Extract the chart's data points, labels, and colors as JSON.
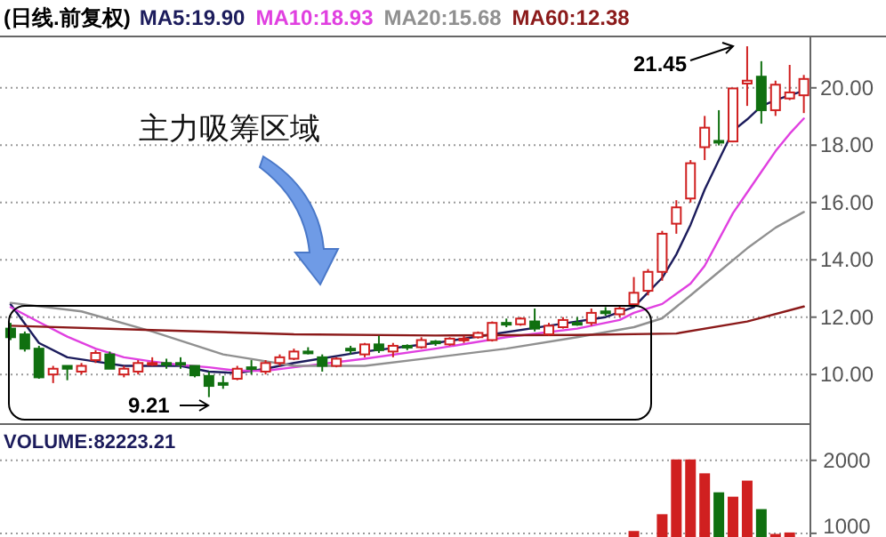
{
  "chart_data": [
    {
      "type": "candlestick",
      "title": "(日线.前复权)",
      "categories": [
        null,
        null,
        null,
        null,
        null,
        null,
        null,
        null,
        null,
        null,
        null,
        null,
        null,
        null,
        null,
        null,
        null,
        null,
        null,
        null,
        null,
        null,
        null,
        null,
        null,
        null,
        null,
        null,
        null,
        null,
        null,
        null,
        null,
        null,
        null,
        null,
        null,
        null,
        null,
        null,
        null,
        null,
        null,
        null,
        null,
        null,
        null,
        null,
        null,
        null,
        null,
        null,
        null,
        null,
        null,
        null,
        null
      ],
      "ohlc": [
        [
          11.6,
          11.8,
          11.2,
          11.3
        ],
        [
          11.4,
          11.5,
          10.8,
          10.9
        ],
        [
          10.9,
          11.0,
          9.85,
          9.9
        ],
        [
          10.0,
          10.3,
          9.7,
          10.2
        ],
        [
          10.3,
          10.3,
          9.8,
          10.2
        ],
        [
          10.1,
          10.4,
          10.0,
          10.3
        ],
        [
          10.5,
          10.85,
          10.4,
          10.75
        ],
        [
          10.7,
          10.8,
          10.2,
          10.2
        ],
        [
          10.0,
          10.3,
          9.9,
          10.2
        ],
        [
          10.1,
          10.5,
          10.0,
          10.4
        ],
        [
          10.35,
          10.6,
          10.3,
          10.4
        ],
        [
          10.4,
          10.55,
          10.2,
          10.35
        ],
        [
          10.4,
          10.6,
          10.2,
          10.35
        ],
        [
          10.3,
          10.3,
          9.9,
          9.97
        ],
        [
          9.95,
          10.1,
          9.21,
          9.6
        ],
        [
          9.7,
          9.95,
          9.5,
          9.68
        ],
        [
          9.85,
          10.3,
          9.8,
          10.2
        ],
        [
          10.25,
          10.5,
          10.0,
          10.2
        ],
        [
          10.1,
          10.5,
          10.0,
          10.4
        ],
        [
          10.4,
          10.7,
          10.3,
          10.6
        ],
        [
          10.55,
          10.9,
          10.5,
          10.8
        ],
        [
          10.8,
          10.95,
          10.7,
          10.75
        ],
        [
          10.6,
          10.7,
          10.1,
          10.3
        ],
        [
          10.3,
          10.6,
          10.25,
          10.55
        ],
        [
          10.9,
          11.0,
          10.7,
          10.85
        ],
        [
          10.7,
          11.1,
          10.6,
          11.05
        ],
        [
          11.05,
          11.35,
          10.75,
          10.85
        ],
        [
          10.8,
          11.1,
          10.6,
          11.0
        ],
        [
          11.0,
          11.05,
          10.85,
          10.95
        ],
        [
          10.95,
          11.3,
          10.9,
          11.2
        ],
        [
          11.15,
          11.2,
          11.0,
          11.1
        ],
        [
          11.05,
          11.3,
          11.0,
          11.25
        ],
        [
          11.2,
          11.35,
          11.1,
          11.25
        ],
        [
          11.3,
          11.5,
          11.25,
          11.45
        ],
        [
          11.2,
          11.85,
          11.15,
          11.8
        ],
        [
          11.8,
          11.95,
          11.65,
          11.75
        ],
        [
          11.75,
          12.0,
          11.7,
          11.95
        ],
        [
          11.85,
          12.3,
          11.5,
          11.6
        ],
        [
          11.4,
          11.8,
          11.35,
          11.7
        ],
        [
          11.65,
          12.0,
          11.6,
          11.9
        ],
        [
          11.8,
          12.0,
          11.7,
          11.75
        ],
        [
          11.8,
          12.3,
          11.7,
          12.15
        ],
        [
          12.2,
          12.35,
          12.05,
          12.15
        ],
        [
          12.1,
          12.4,
          12.0,
          12.3
        ],
        [
          12.45,
          13.4,
          12.4,
          12.85
        ],
        [
          12.92,
          13.68,
          12.76,
          13.58
        ],
        [
          13.58,
          15.01,
          13.27,
          14.91
        ],
        [
          15.26,
          16.08,
          14.91,
          15.83
        ],
        [
          16.14,
          17.48,
          16.0,
          17.37
        ],
        [
          17.93,
          19.02,
          17.48,
          18.61
        ],
        [
          18.15,
          19.22,
          17.99,
          18.1
        ],
        [
          18.13,
          19.98,
          18.1,
          19.98
        ],
        [
          20.15,
          21.45,
          19.37,
          20.25
        ],
        [
          20.39,
          20.93,
          18.75,
          19.22
        ],
        [
          19.22,
          20.25,
          19.02,
          20.11
        ],
        [
          19.63,
          20.8,
          19.57,
          19.84
        ],
        [
          19.74,
          20.45,
          19.12,
          20.31
        ]
      ],
      "series": [
        {
          "name": "MA5:19.90",
          "type": "line",
          "color": "#1c1c5c",
          "values": [
            12.45,
            null,
            11.1,
            null,
            10.6,
            null,
            10.45,
            null,
            10.3,
            null,
            null,
            null,
            10.3,
            null,
            10.1,
            null,
            10.05,
            null,
            10.2,
            null,
            10.4,
            null,
            null,
            null,
            null,
            10.8,
            null,
            null,
            null,
            null,
            11.1,
            null,
            null,
            null,
            11.4,
            null,
            null,
            null,
            11.7,
            null,
            null,
            null,
            12.0,
            null,
            12.35,
            null,
            13.37,
            14.19,
            15.22,
            16.45,
            17.48,
            18.5,
            18.9,
            19.36,
            19.57,
            19.74,
            19.9
          ]
        },
        {
          "name": "MA10:18.93",
          "type": "line",
          "color": "#e040e0",
          "values": [
            12.35,
            null,
            11.83,
            null,
            11.32,
            null,
            10.9,
            null,
            10.6,
            null,
            10.45,
            null,
            10.33,
            null,
            10.25,
            null,
            10.13,
            null,
            10.13,
            null,
            10.25,
            null,
            null,
            null,
            null,
            10.55,
            null,
            null,
            null,
            null,
            10.9,
            null,
            null,
            null,
            null,
            11.3,
            null,
            null,
            null,
            null,
            11.6,
            null,
            null,
            11.9,
            12.15,
            null,
            12.46,
            null,
            13.17,
            13.79,
            14.71,
            15.63,
            16.35,
            17.07,
            17.79,
            18.4,
            18.93
          ]
        },
        {
          "name": "MA20:15.68",
          "type": "line",
          "color": "#909090",
          "values": [
            12.5,
            null,
            null,
            null,
            null,
            12.2,
            null,
            null,
            null,
            null,
            11.5,
            null,
            null,
            null,
            null,
            10.7,
            null,
            null,
            null,
            null,
            10.3,
            null,
            null,
            null,
            null,
            10.3,
            null,
            null,
            null,
            null,
            10.6,
            null,
            null,
            null,
            null,
            10.9,
            null,
            null,
            null,
            null,
            11.3,
            null,
            null,
            null,
            11.65,
            null,
            11.96,
            null,
            12.76,
            null,
            13.58,
            null,
            14.4,
            null,
            15.12,
            null,
            15.67
          ]
        },
        {
          "name": "MA60:12.38",
          "type": "line",
          "color": "#8b1a1a",
          "values": [
            11.7,
            null,
            null,
            null,
            null,
            null,
            null,
            null,
            null,
            null,
            11.55,
            null,
            null,
            null,
            null,
            null,
            null,
            null,
            null,
            null,
            11.4,
            null,
            null,
            null,
            null,
            null,
            null,
            null,
            null,
            null,
            11.36,
            null,
            null,
            null,
            null,
            null,
            null,
            null,
            null,
            null,
            11.38,
            null,
            null,
            null,
            null,
            null,
            null,
            11.43,
            null,
            null,
            null,
            null,
            11.85,
            null,
            null,
            null,
            12.37
          ]
        }
      ],
      "ylim": [
        8.3,
        21.7
      ],
      "yticks": [
        {
          "value": 10,
          "label": "10.00"
        },
        {
          "value": 12,
          "label": "12.00"
        },
        {
          "value": 14,
          "label": "14.00"
        },
        {
          "value": 16,
          "label": "16.00"
        },
        {
          "value": 18,
          "label": "18.00"
        },
        {
          "value": 20,
          "label": "20.00"
        }
      ],
      "grid": "y",
      "legend": "top left",
      "annotations": [
        "主力吸筹区域",
        "9.21",
        "21.45"
      ]
    },
    {
      "type": "bar",
      "title": "VOLUME:82223.21",
      "categories": [
        null,
        null,
        null,
        null,
        null,
        null,
        null,
        null,
        null,
        null,
        null,
        null,
        null,
        null,
        null,
        null,
        null,
        null,
        null,
        null,
        null,
        null,
        null,
        null,
        null,
        null,
        null,
        null,
        null,
        null,
        null,
        null,
        null,
        null,
        null,
        null,
        null,
        null,
        null,
        null,
        null,
        null,
        null,
        null,
        null,
        null,
        null,
        null,
        null,
        null,
        null,
        null,
        null,
        null,
        null,
        null,
        null
      ],
      "values": [
        null,
        null,
        null,
        null,
        null,
        null,
        null,
        null,
        null,
        null,
        null,
        null,
        null,
        null,
        null,
        null,
        null,
        null,
        null,
        null,
        null,
        null,
        null,
        null,
        null,
        null,
        null,
        null,
        null,
        null,
        null,
        null,
        null,
        null,
        null,
        null,
        null,
        null,
        null,
        null,
        null,
        null,
        null,
        null,
        1020,
        null,
        1250,
        2000,
        2000,
        1810,
        1550,
        1490,
        1710,
        1320,
        980,
        1000,
        null
      ],
      "colors": [
        null,
        null,
        null,
        null,
        null,
        null,
        null,
        null,
        null,
        null,
        null,
        null,
        null,
        null,
        null,
        null,
        null,
        null,
        null,
        null,
        null,
        null,
        null,
        null,
        null,
        null,
        null,
        null,
        null,
        null,
        null,
        null,
        null,
        null,
        null,
        null,
        null,
        null,
        null,
        null,
        null,
        null,
        null,
        null,
        "#d02020",
        null,
        "#d02020",
        "#d02020",
        "#d02020",
        "#d02020",
        "#107010",
        "#d02020",
        "#d02020",
        "#107010",
        "#d02020",
        "#d02020",
        null
      ],
      "ylim": [
        950,
        2460
      ],
      "yticks": [
        1000,
        2000
      ],
      "grid": "y"
    }
  ]
}
